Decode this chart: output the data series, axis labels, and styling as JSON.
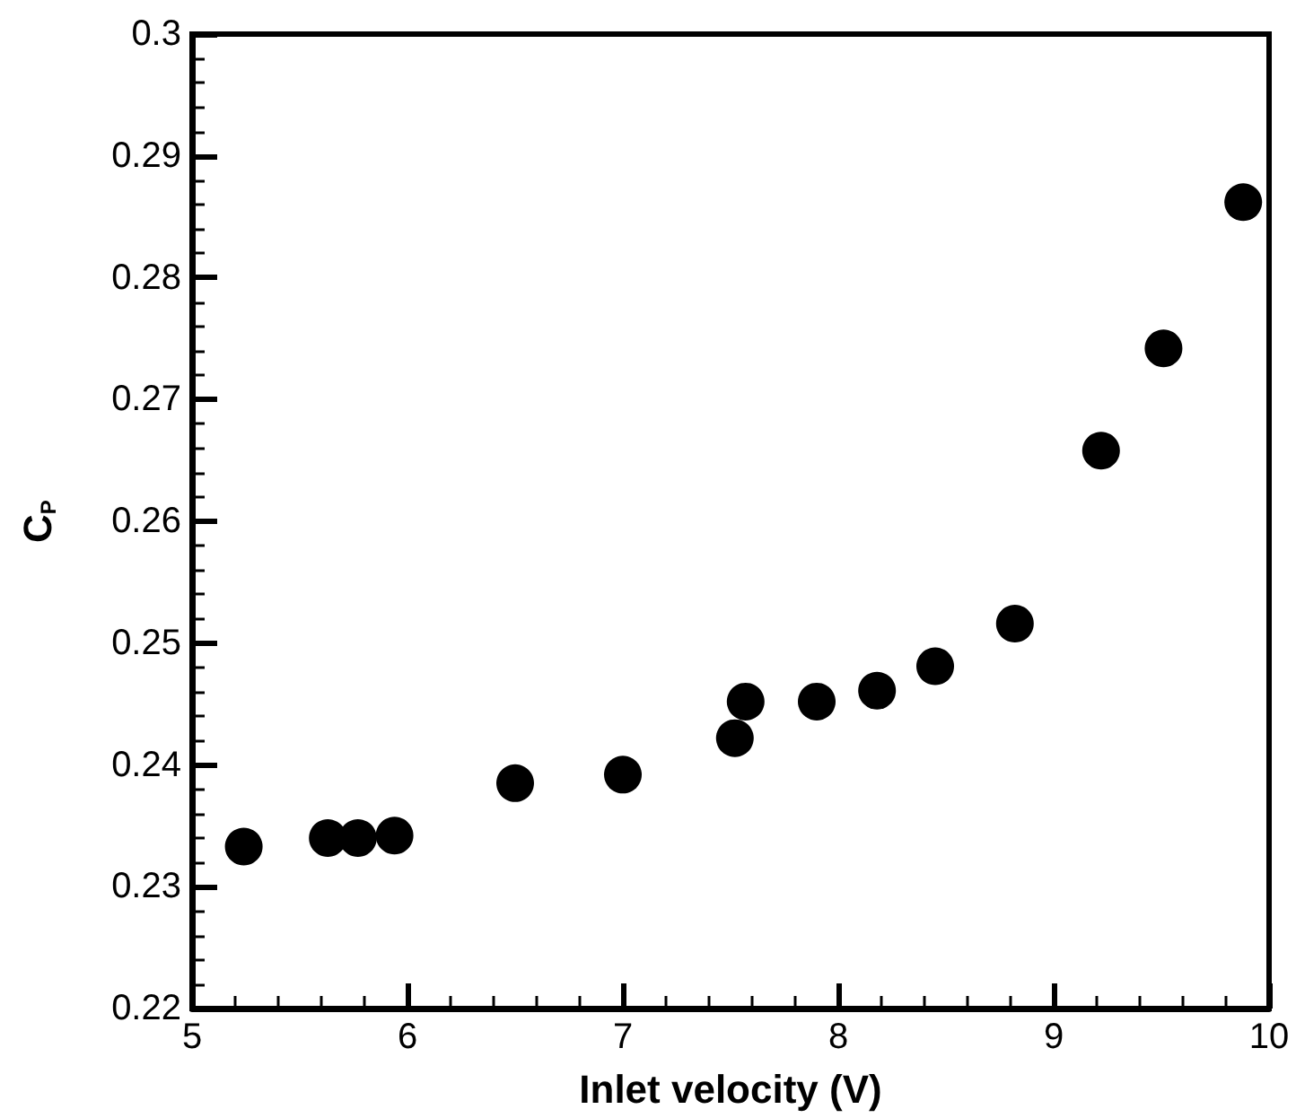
{
  "chart_data": {
    "type": "scatter",
    "xlabel": "Inlet velocity (V)",
    "ylabel": "C$_{P}$",
    "x": [
      5.24,
      5.63,
      5.77,
      5.94,
      6.5,
      7.0,
      7.52,
      7.57,
      7.9,
      8.18,
      8.45,
      8.82,
      9.22,
      9.51,
      9.88
    ],
    "series": [
      {
        "color": "#000000",
        "values": [
          0.2333,
          0.234,
          0.234,
          0.2342,
          0.2385,
          0.2392,
          0.2422,
          0.2452,
          0.2452,
          0.2461,
          0.2481,
          0.2516,
          0.2658,
          0.2742,
          0.2862
        ]
      }
    ],
    "xlim": [
      5,
      10
    ],
    "xticks": [
      5,
      6,
      7,
      8,
      9,
      10
    ],
    "ylim": [
      0.22,
      0.3
    ],
    "yticks": [
      0.22,
      0.23,
      0.24,
      0.25,
      0.26,
      0.27,
      0.28,
      0.29,
      0.3
    ],
    "grid": false,
    "marker": "circle"
  }
}
